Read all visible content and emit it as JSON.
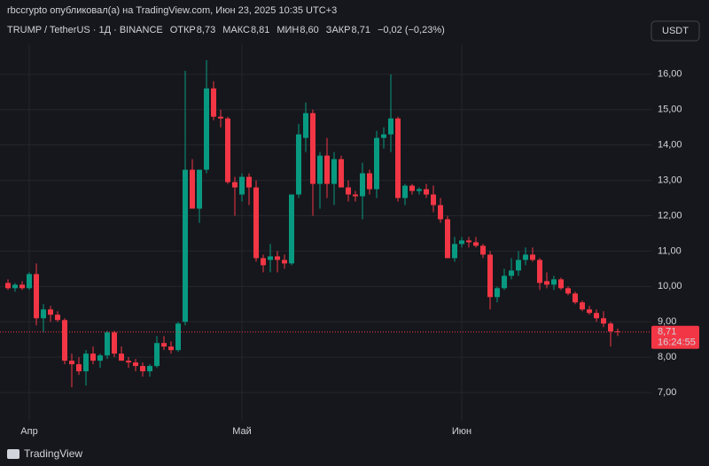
{
  "chart_data": {
    "type": "candlestick",
    "publisher": "rbccrypto опубликовал(а) на TradingView.com, Июн 23, 2025 10:35 UTC+3",
    "symbol": "TRUMP / TetherUS · 1Д · BINANCE",
    "header": {
      "open_label": "ОТКР",
      "open": "8,73",
      "high_label": "МАКС",
      "high": "8,81",
      "low_label": "МИН",
      "low": "8,60",
      "close_label": "ЗАКР",
      "close": "8,71",
      "change": "−0,02 (−0,23%)"
    },
    "currency": "USDT",
    "brand": "TradingView",
    "up_color": "#089981",
    "down_color": "#f23645",
    "categories": [
      null,
      null,
      null,
      "Апр",
      null,
      null,
      null,
      null,
      null,
      null,
      null,
      null,
      null,
      null,
      null,
      null,
      null,
      null,
      null,
      null,
      null,
      null,
      null,
      null,
      null,
      null,
      null,
      null,
      null,
      null,
      null,
      null,
      null,
      "Май",
      null,
      null,
      null,
      null,
      null,
      null,
      null,
      null,
      null,
      null,
      null,
      null,
      null,
      null,
      null,
      null,
      null,
      null,
      null,
      null,
      null,
      null,
      null,
      null,
      null,
      null,
      null,
      null,
      null,
      null,
      "Июн",
      null,
      null,
      null,
      null,
      null,
      null,
      null,
      null,
      null,
      null,
      null,
      null,
      null,
      null,
      null,
      null,
      null,
      null,
      null,
      null,
      null,
      null
    ],
    "open": [
      10.1,
      9.95,
      10.05,
      9.95,
      10.35,
      9.1,
      9.35,
      9.2,
      9.05,
      7.9,
      7.8,
      7.6,
      8.1,
      7.9,
      8.05,
      8.7,
      8.1,
      7.9,
      7.85,
      7.75,
      7.6,
      7.75,
      8.4,
      8.3,
      8.2,
      9.0,
      13.3,
      12.2,
      13.3,
      15.6,
      14.8,
      14.75,
      12.95,
      12.6,
      13.1,
      12.8,
      10.8,
      10.75,
      10.85,
      10.75,
      10.65,
      12.6,
      14.2,
      14.9,
      12.9,
      13.7,
      12.9,
      13.6,
      12.8,
      12.6,
      12.55,
      13.2,
      12.75,
      14.2,
      14.3,
      14.75,
      12.5,
      12.85,
      12.7,
      12.75,
      12.6,
      12.3,
      11.9,
      10.8,
      11.2,
      11.3,
      11.25,
      11.15,
      10.9,
      9.7,
      9.95,
      10.3,
      10.45,
      10.75,
      10.9,
      10.75,
      10.15,
      10.05,
      10.2,
      9.95,
      9.8,
      9.55,
      9.35,
      9.25,
      9.1,
      8.95,
      8.73
    ],
    "high": [
      10.2,
      10.1,
      10.15,
      10.4,
      10.65,
      9.5,
      9.45,
      9.3,
      9.1,
      8.1,
      8.0,
      8.2,
      8.3,
      8.1,
      8.75,
      8.75,
      8.3,
      8.0,
      7.95,
      7.85,
      7.8,
      8.6,
      8.6,
      8.45,
      9.0,
      16.1,
      13.6,
      13.3,
      16.4,
      15.8,
      15.0,
      14.8,
      13.1,
      13.2,
      13.2,
      13.0,
      10.9,
      11.2,
      11.0,
      10.9,
      12.6,
      14.6,
      15.2,
      15.0,
      13.8,
      14.2,
      13.8,
      13.7,
      13.0,
      12.7,
      13.5,
      13.3,
      14.4,
      14.5,
      16.0,
      14.8,
      12.9,
      12.9,
      12.8,
      12.9,
      12.85,
      12.5,
      12.0,
      11.4,
      11.4,
      11.4,
      11.4,
      11.2,
      11.0,
      10.0,
      10.5,
      10.8,
      11.0,
      11.1,
      11.1,
      10.8,
      10.4,
      10.3,
      10.25,
      10.0,
      9.85,
      9.6,
      9.45,
      9.35,
      9.3,
      9.0,
      8.81
    ],
    "low": [
      9.9,
      9.85,
      9.9,
      9.9,
      8.9,
      8.7,
      9.0,
      9.0,
      7.8,
      7.15,
      7.5,
      7.2,
      7.8,
      7.7,
      7.95,
      8.0,
      7.9,
      7.7,
      7.6,
      7.45,
      7.45,
      7.7,
      8.2,
      8.1,
      8.15,
      8.9,
      12.2,
      11.8,
      13.2,
      14.7,
      14.5,
      12.9,
      12.0,
      12.4,
      12.3,
      10.7,
      10.4,
      10.4,
      10.4,
      10.5,
      10.6,
      12.5,
      13.8,
      12.0,
      12.2,
      12.5,
      12.3,
      12.8,
      12.4,
      12.4,
      11.9,
      12.6,
      12.5,
      13.9,
      13.8,
      12.4,
      12.3,
      12.6,
      12.6,
      12.5,
      12.1,
      11.8,
      10.8,
      10.7,
      11.1,
      11.1,
      11.1,
      10.8,
      9.35,
      9.55,
      9.9,
      10.2,
      10.3,
      10.6,
      10.7,
      9.9,
      9.95,
      9.9,
      9.9,
      9.75,
      9.5,
      9.3,
      9.2,
      9.0,
      8.85,
      8.3,
      8.6
    ],
    "close": [
      9.95,
      10.05,
      9.95,
      10.35,
      9.1,
      9.35,
      9.2,
      9.05,
      7.9,
      7.8,
      7.6,
      8.1,
      7.9,
      8.05,
      8.7,
      8.1,
      7.9,
      7.85,
      7.75,
      7.6,
      7.75,
      8.4,
      8.3,
      8.2,
      8.95,
      13.3,
      12.2,
      13.3,
      15.6,
      14.8,
      14.75,
      12.95,
      12.8,
      13.1,
      12.8,
      10.8,
      10.6,
      10.85,
      10.75,
      10.65,
      12.6,
      14.3,
      14.9,
      12.9,
      13.7,
      12.9,
      13.6,
      12.8,
      12.6,
      12.55,
      13.2,
      12.75,
      14.2,
      14.3,
      14.75,
      12.5,
      12.85,
      12.7,
      12.75,
      12.6,
      12.3,
      11.9,
      10.8,
      11.2,
      11.3,
      11.25,
      11.15,
      10.9,
      9.7,
      9.95,
      10.3,
      10.45,
      10.75,
      10.9,
      10.75,
      10.1,
      10.05,
      10.2,
      9.95,
      9.8,
      9.55,
      9.35,
      9.25,
      9.1,
      8.95,
      8.73,
      8.71
    ],
    "last_price": {
      "value": 8.71,
      "label": "8,71"
    },
    "countdown": "16:24:55",
    "ylim": [
      6.2,
      18.1
    ],
    "yticks": [
      {
        "value": 7,
        "label": "7,00"
      },
      {
        "value": 8,
        "label": "8,00"
      },
      {
        "value": 9,
        "label": "9,00"
      },
      {
        "value": 10,
        "label": "10,00"
      },
      {
        "value": 11,
        "label": "11,00"
      },
      {
        "value": 12,
        "label": "12,00"
      },
      {
        "value": 13,
        "label": "13,00"
      },
      {
        "value": 14,
        "label": "14,00"
      },
      {
        "value": 15,
        "label": "15,00"
      },
      {
        "value": 16,
        "label": "16,00"
      }
    ],
    "grid": true
  }
}
